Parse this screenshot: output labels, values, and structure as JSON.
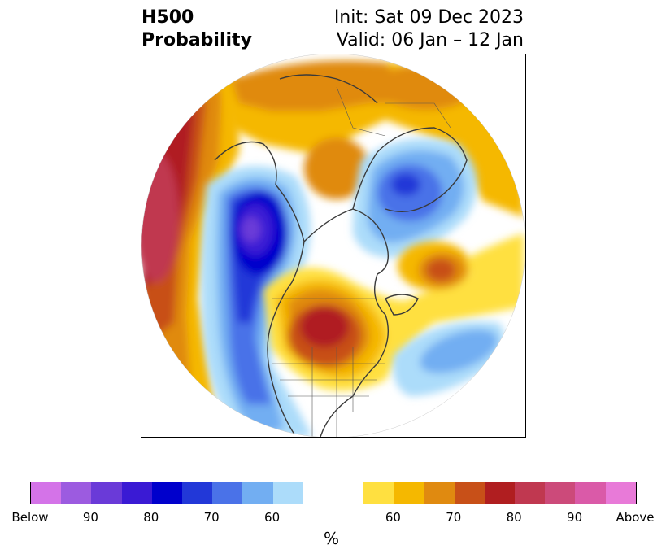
{
  "title": {
    "left_line1": "H500",
    "left_line2": "Probability",
    "right_line1": "Init: Sat 09 Dec 2023",
    "right_line2": "Valid: 06 Jan – 12 Jan"
  },
  "colorbar": {
    "unit": "%",
    "segments": [
      {
        "color": "#d473e8"
      },
      {
        "color": "#9c5be0"
      },
      {
        "color": "#6a3ad8"
      },
      {
        "color": "#3a1ad4"
      },
      {
        "color": "#0000cc"
      },
      {
        "color": "#2238d8"
      },
      {
        "color": "#4a72e8"
      },
      {
        "color": "#72aef2"
      },
      {
        "color": "#acdcfa"
      },
      {
        "color": "#ffffff"
      },
      {
        "color": "#ffe040"
      },
      {
        "color": "#f5b800"
      },
      {
        "color": "#e08a10"
      },
      {
        "color": "#c85018"
      },
      {
        "color": "#b01e20"
      },
      {
        "color": "#c03850"
      },
      {
        "color": "#cc4a7a"
      },
      {
        "color": "#da5aa8"
      },
      {
        "color": "#e87ad8"
      }
    ],
    "tick_labels": [
      "Below",
      "90",
      "80",
      "70",
      "60",
      "60",
      "70",
      "80",
      "90",
      "Above"
    ]
  }
}
